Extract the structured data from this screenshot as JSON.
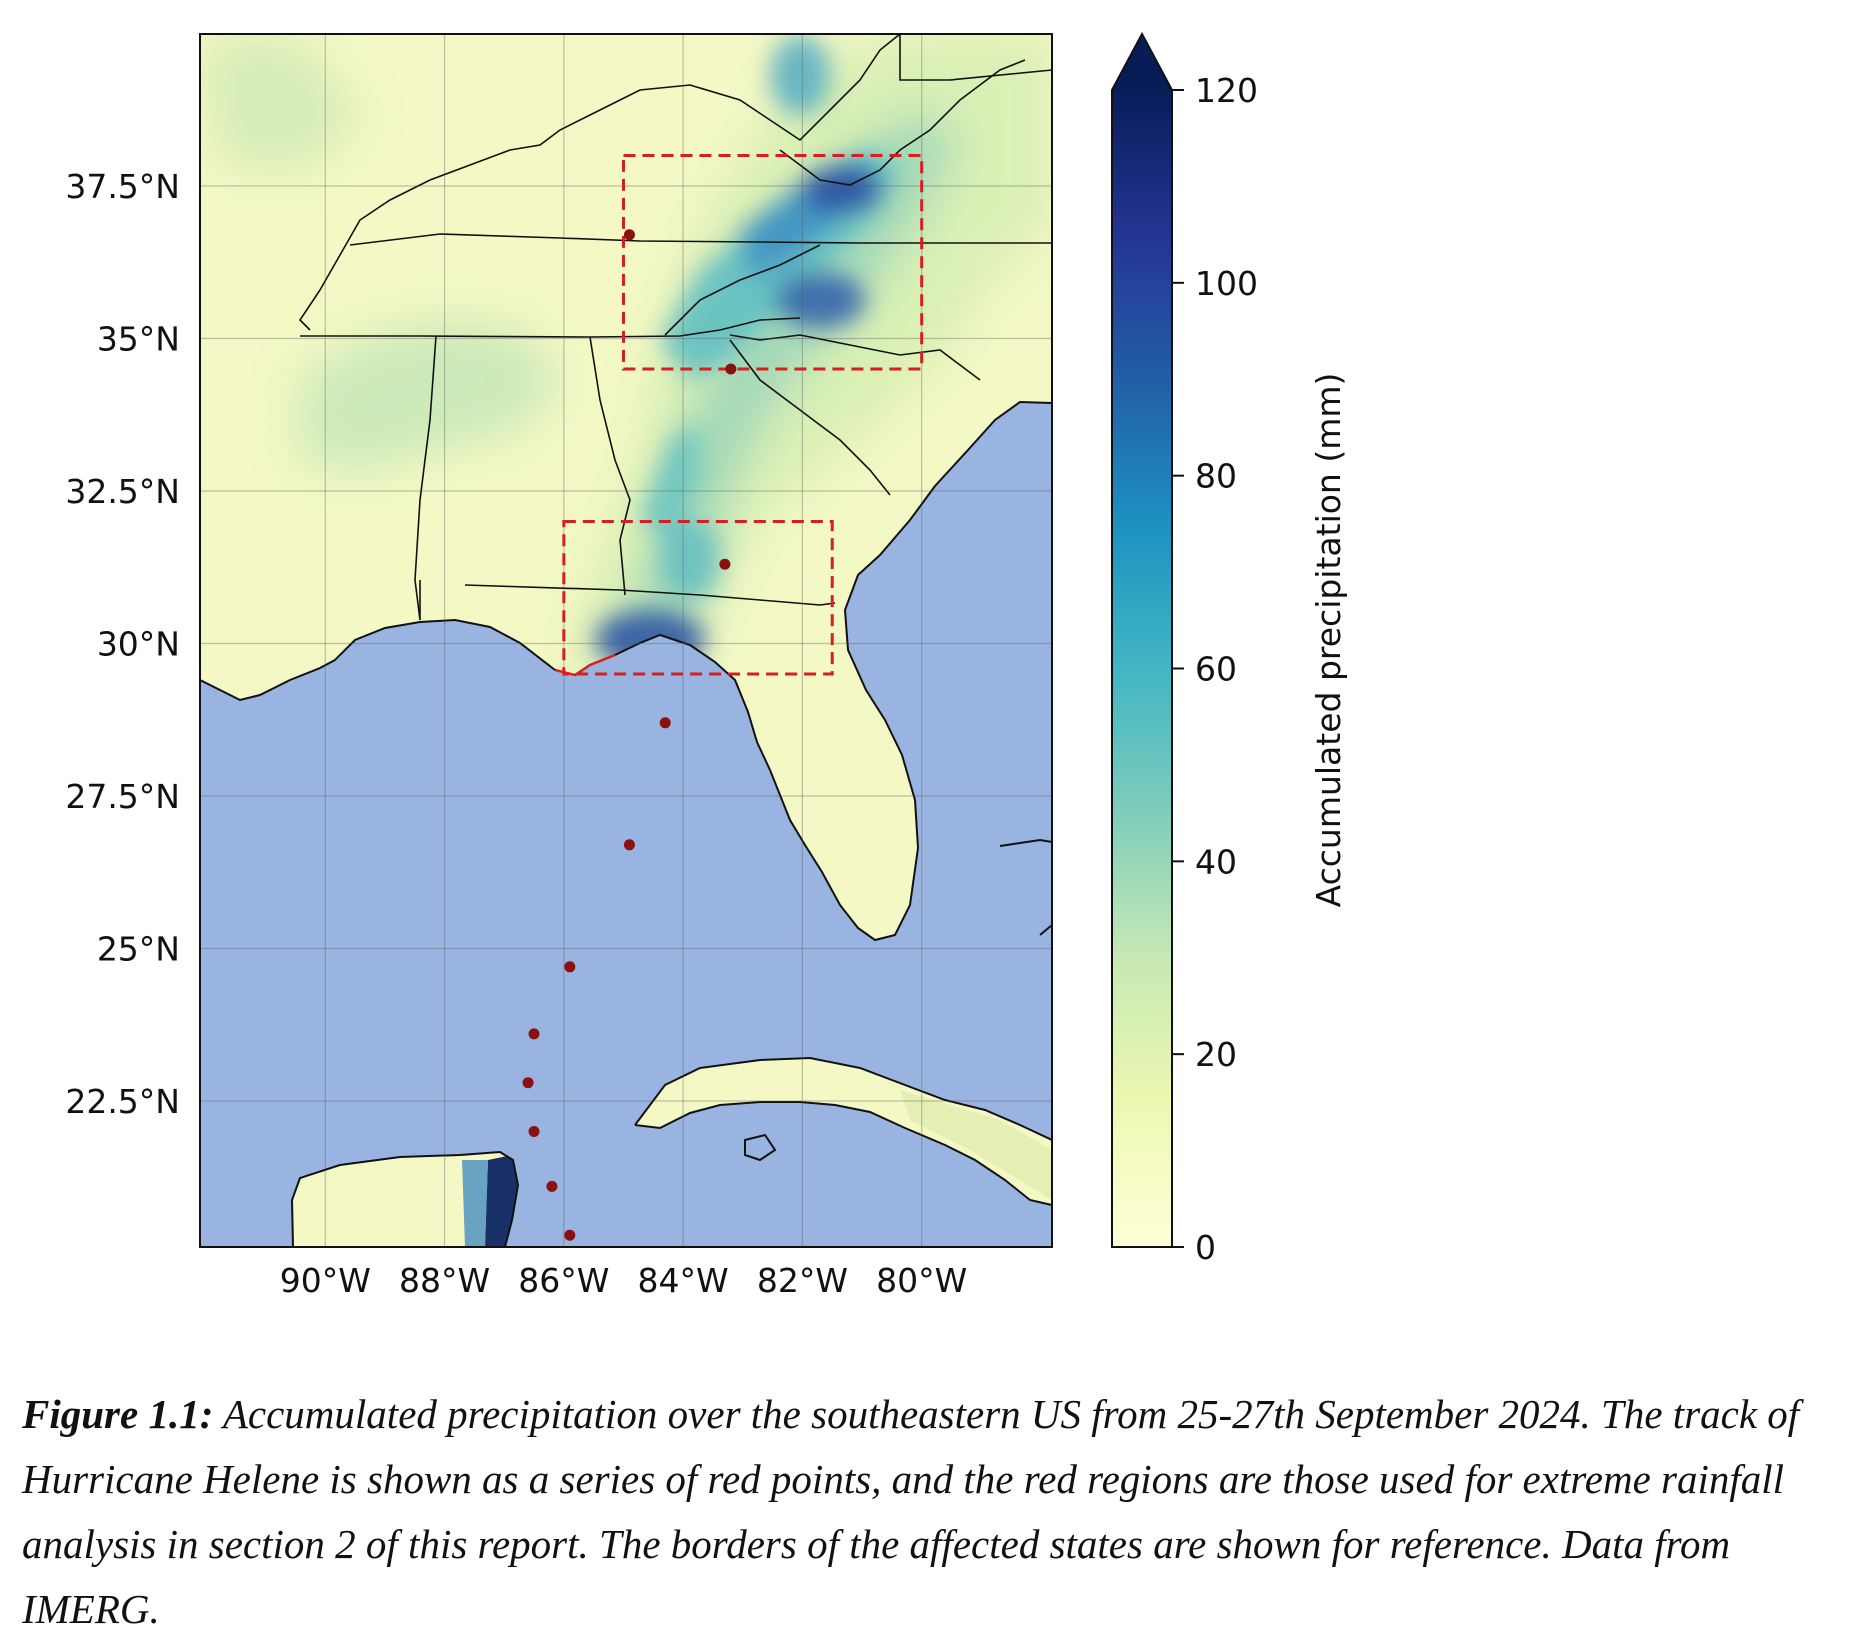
{
  "chart_data": {
    "type": "heatmap",
    "title": "",
    "xlabel": "",
    "ylabel": "",
    "x_ticks": [
      "90°W",
      "88°W",
      "86°W",
      "84°W",
      "82°W",
      "80°W"
    ],
    "x_tick_values": [
      -90,
      -88,
      -86,
      -84,
      -82,
      -80
    ],
    "y_ticks": [
      "37.5°N",
      "35°N",
      "32.5°N",
      "30°N",
      "27.5°N",
      "25°N",
      "22.5°N"
    ],
    "y_tick_values": [
      37.5,
      35,
      32.5,
      30,
      27.5,
      25,
      22.5
    ],
    "lon_range": [
      -92,
      -78
    ],
    "lat_range": [
      20,
      40
    ],
    "grid": true,
    "colorbar": {
      "label": "Accumulated precipitation (mm)",
      "ticks": [
        "0",
        "20",
        "40",
        "60",
        "80",
        "100",
        "120"
      ],
      "tick_values": [
        0,
        20,
        40,
        60,
        80,
        100,
        120
      ],
      "range": [
        0,
        120
      ],
      "extend": "max",
      "colors": [
        "#ffffd9",
        "#edf8b1",
        "#c7e9b4",
        "#7fcdbb",
        "#41b6c4",
        "#1d91c0",
        "#225ea8",
        "#253494",
        "#081d58"
      ]
    },
    "regions": [
      {
        "lon": [
          -85,
          -80
        ],
        "lat": [
          34.5,
          38
        ]
      },
      {
        "lon": [
          -86,
          -81.5
        ],
        "lat": [
          29.5,
          32
        ]
      }
    ],
    "track": [
      {
        "lon": -85.9,
        "lat": 20.3
      },
      {
        "lon": -86.2,
        "lat": 21.1
      },
      {
        "lon": -86.5,
        "lat": 22.0
      },
      {
        "lon": -86.6,
        "lat": 22.8
      },
      {
        "lon": -86.5,
        "lat": 23.6
      },
      {
        "lon": -85.9,
        "lat": 24.7
      },
      {
        "lon": -84.9,
        "lat": 26.7
      },
      {
        "lon": -84.3,
        "lat": 28.7
      },
      {
        "lon": -83.3,
        "lat": 31.3
      },
      {
        "lon": -83.2,
        "lat": 34.5
      },
      {
        "lon": -84.9,
        "lat": 36.7
      }
    ],
    "colors": {
      "ocean": "#99b4e0",
      "track": "#8b1010",
      "region": "#d42020"
    }
  },
  "caption": {
    "label": "Figure 1.1:",
    "text": " Accumulated precipitation over the southeastern US from 25-27th September 2024. The track of Hurricane Helene is shown as a series of red points, and the red regions are those used for extreme rainfall analysis in section 2 of this report. The borders of the affected states are shown for reference. Data from IMERG."
  }
}
